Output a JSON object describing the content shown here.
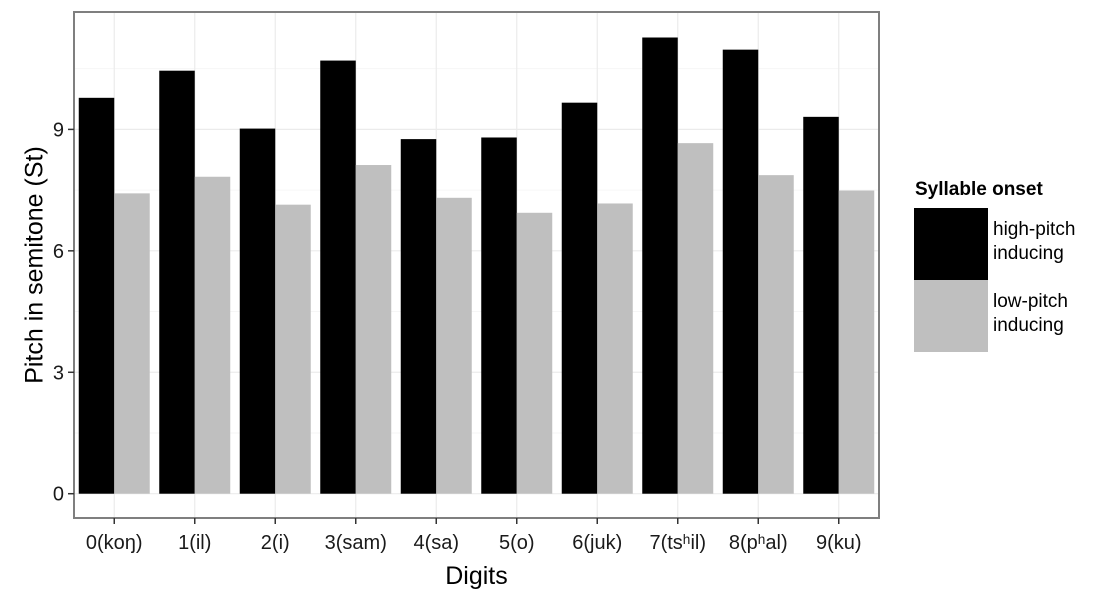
{
  "chart_data": {
    "type": "bar",
    "xlabel": "Digits",
    "ylabel": "Pitch in semitone (St)",
    "categories": [
      "0(koŋ)",
      "1(il)",
      "2(i)",
      "3(sam)",
      "4(sa)",
      "5(o)",
      "6(juk)",
      "7(tsʰil)",
      "8(pʰal)",
      "9(ku)"
    ],
    "series": [
      {
        "name": "high-pitch inducing",
        "values": [
          9.78,
          10.45,
          9.02,
          10.7,
          8.76,
          8.8,
          9.66,
          11.27,
          10.97,
          9.31
        ],
        "color": "#000000"
      },
      {
        "name": "low-pitch inducing",
        "values": [
          7.42,
          7.83,
          7.14,
          8.12,
          7.31,
          6.94,
          7.17,
          8.66,
          7.87,
          7.49
        ],
        "color": "#bfbfbf"
      }
    ],
    "yticks": [
      0,
      3,
      6,
      9
    ],
    "ylim": [
      -0.6,
      11.9
    ],
    "grid": true,
    "legend": {
      "title": "Syllable onset",
      "position": "right",
      "entries": [
        {
          "label_lines": [
            "high-pitch",
            "inducing"
          ],
          "color": "#000000"
        },
        {
          "label_lines": [
            "low-pitch",
            "inducing"
          ],
          "color": "#bfbfbf"
        }
      ]
    },
    "colors": {
      "panel_border": "#7f7f7f",
      "grid_major": "#ebebeb",
      "grid_minor": "#f6f6f6"
    }
  }
}
